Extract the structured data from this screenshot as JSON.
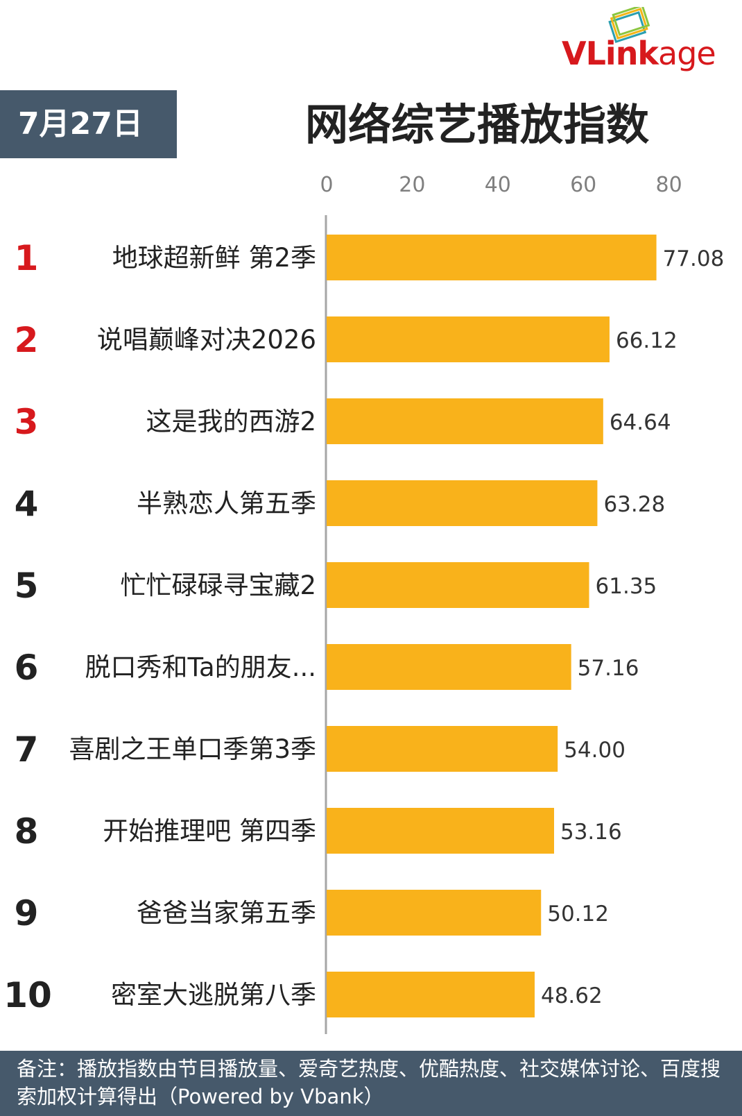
{
  "logo": {
    "text_v": "V",
    "text_link": "Link",
    "text_age": "age",
    "mark_icon": "stacked-frames-icon",
    "colors": {
      "brand_red": "#d7191d",
      "mark_gold": "#f2b519",
      "mark_teal": "#2a9fb0"
    }
  },
  "header": {
    "date": "7月27日"
  },
  "colors": {
    "bar": "#f9b21b",
    "rank_top": "#d7191d",
    "rank_other": "#222222",
    "banner": "#46596b"
  },
  "chart_data": {
    "type": "bar",
    "orientation": "horizontal",
    "title": "网络综艺播放指数",
    "xlim": [
      0,
      80
    ],
    "x_ticks": [
      "0",
      "20",
      "40",
      "60",
      "80"
    ],
    "ranks": [
      "1",
      "2",
      "3",
      "4",
      "5",
      "6",
      "7",
      "8",
      "9",
      "10"
    ],
    "categories": [
      "地球超新鲜 第2季",
      "说唱巅峰对决2026",
      "这是我的西游2",
      "半熟恋人第五季",
      "忙忙碌碌寻宝藏2",
      "脱口秀和Ta的朋友...",
      "喜剧之王单口季第3季",
      "开始推理吧 第四季",
      "爸爸当家第五季",
      "密室大逃脱第八季"
    ],
    "values": [
      77.08,
      66.12,
      64.64,
      63.28,
      61.35,
      57.16,
      54.0,
      53.16,
      50.12,
      48.62
    ],
    "value_labels": [
      "77.08",
      "66.12",
      "64.64",
      "63.28",
      "61.35",
      "57.16",
      "54.00",
      "53.16",
      "50.12",
      "48.62"
    ],
    "grid": false
  },
  "footer": {
    "note": "备注：播放指数由节目播放量、爱奇艺热度、优酷热度、社交媒体讨论、百度搜索加权计算得出（Powered by Vbank）"
  }
}
